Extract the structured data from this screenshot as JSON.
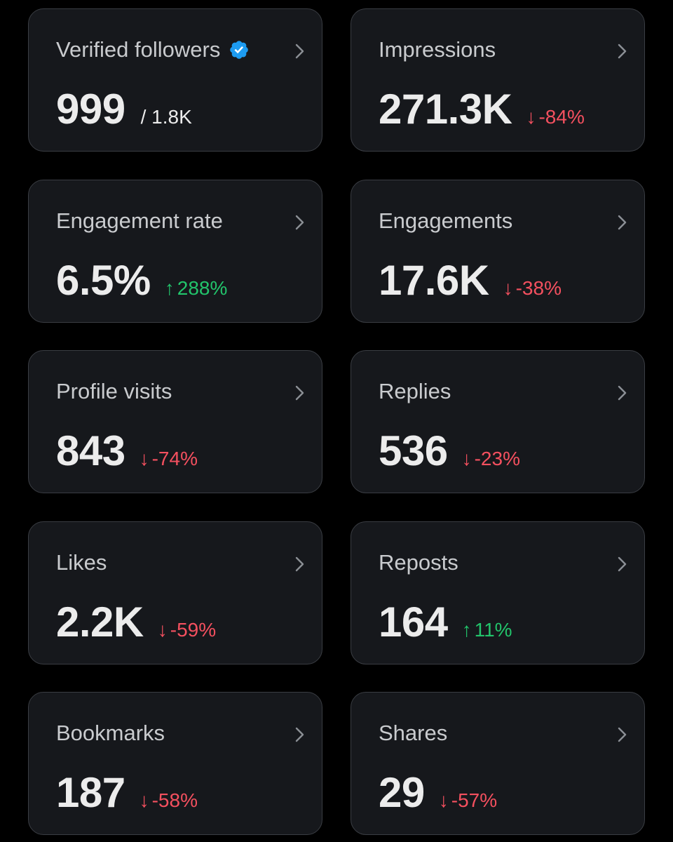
{
  "colors": {
    "background": "#000000",
    "card": "#16181c",
    "card_border": "#3a3d43",
    "label": "#c9cbce",
    "value": "#ececec",
    "negative": "#f4505f",
    "positive": "#22c46b",
    "verified_badge": "#1d9bf0"
  },
  "metrics": [
    {
      "label": "Verified followers",
      "value": "999",
      "sub": "/ 1.8K",
      "icon": "verified-badge-icon"
    },
    {
      "label": "Impressions",
      "value": "271.3K",
      "arrow": "↓",
      "delta": "-84%",
      "direction": "down"
    },
    {
      "label": "Engagement rate",
      "value": "6.5%",
      "arrow": "↑",
      "delta": "288%",
      "direction": "up"
    },
    {
      "label": "Engagements",
      "value": "17.6K",
      "arrow": "↓",
      "delta": "-38%",
      "direction": "down"
    },
    {
      "label": "Profile visits",
      "value": "843",
      "arrow": "↓",
      "delta": "-74%",
      "direction": "down"
    },
    {
      "label": "Replies",
      "value": "536",
      "arrow": "↓",
      "delta": "-23%",
      "direction": "down"
    },
    {
      "label": "Likes",
      "value": "2.2K",
      "arrow": "↓",
      "delta": "-59%",
      "direction": "down"
    },
    {
      "label": "Reposts",
      "value": "164",
      "arrow": "↑",
      "delta": "11%",
      "direction": "up"
    },
    {
      "label": "Bookmarks",
      "value": "187",
      "arrow": "↓",
      "delta": "-58%",
      "direction": "down"
    },
    {
      "label": "Shares",
      "value": "29",
      "arrow": "↓",
      "delta": "-57%",
      "direction": "down"
    }
  ]
}
